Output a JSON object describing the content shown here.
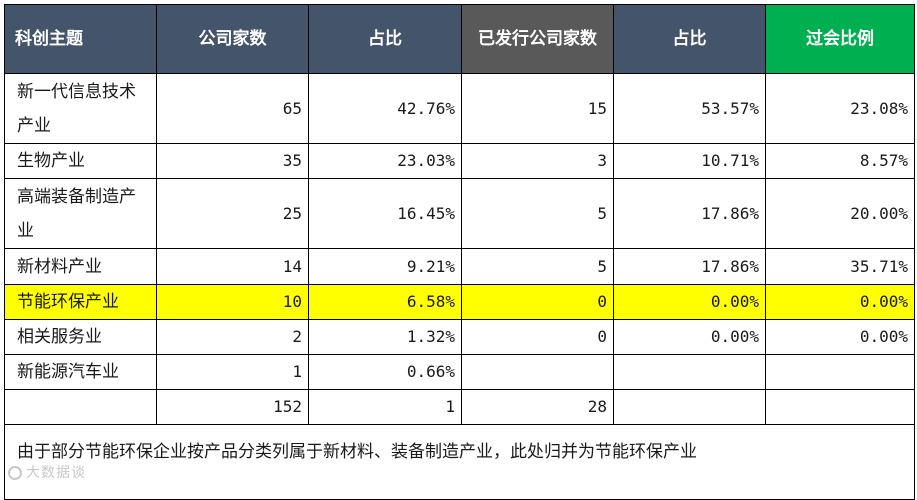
{
  "colors": {
    "header_dark": "#44546a",
    "header_gray": "#595959",
    "header_green": "#00b050",
    "highlight": "#ffff00"
  },
  "table": {
    "headers": [
      "科创主题",
      "公司家数",
      "占比",
      "已发行公司家数",
      "占比",
      "过会比例"
    ],
    "rows": [
      {
        "label": "新一代信息技术产业",
        "count": "65",
        "share": "42.76%",
        "issued": "15",
        "issued_share": "53.57%",
        "pass_rate": "23.08%"
      },
      {
        "label": "生物产业",
        "count": "35",
        "share": "23.03%",
        "issued": "3",
        "issued_share": "10.71%",
        "pass_rate": "8.57%"
      },
      {
        "label": "高端装备制造产业",
        "count": "25",
        "share": "16.45%",
        "issued": "5",
        "issued_share": "17.86%",
        "pass_rate": "20.00%"
      },
      {
        "label": "新材料产业",
        "count": "14",
        "share": "9.21%",
        "issued": "5",
        "issued_share": "17.86%",
        "pass_rate": "35.71%"
      },
      {
        "label": "节能环保产业",
        "count": "10",
        "share": "6.58%",
        "issued": "0",
        "issued_share": "0.00%",
        "pass_rate": "0.00%"
      },
      {
        "label": "相关服务业",
        "count": "2",
        "share": "1.32%",
        "issued": "0",
        "issued_share": "0.00%",
        "pass_rate": "0.00%"
      },
      {
        "label": "新能源汽车业",
        "count": "1",
        "share": "0.66%",
        "issued": "",
        "issued_share": "",
        "pass_rate": ""
      }
    ],
    "total": {
      "label": "",
      "count": "152",
      "share": "1",
      "issued": "28",
      "issued_share": "",
      "pass_rate": ""
    },
    "note": "由于部分节能环保企业按产品分类列属于新材料、装备制造产业，此处归并为节能环保产业"
  },
  "watermark": "大数据谈"
}
